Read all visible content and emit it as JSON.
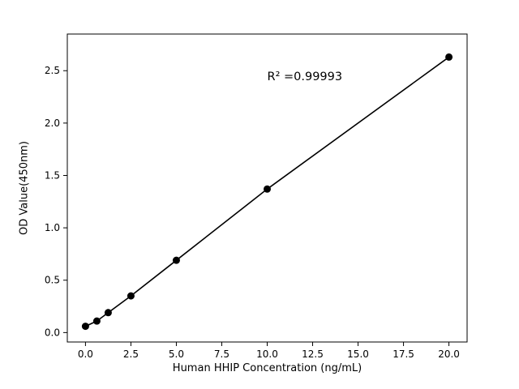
{
  "chart_data": {
    "type": "scatter",
    "title": "",
    "xlabel": "Human HHIP Concentration (ng/mL)",
    "ylabel": "OD Value(450nm)",
    "x": [
      0,
      0.625,
      1.25,
      2.5,
      5,
      10,
      20
    ],
    "y": [
      0.06,
      0.11,
      0.19,
      0.35,
      0.69,
      1.37,
      2.63
    ],
    "line": true,
    "line_color": "#000000",
    "marker_color": "#000000",
    "background_color": "#ffffff",
    "xlim": [
      -1,
      21
    ],
    "ylim": [
      -0.09,
      2.85
    ],
    "xticks": [
      {
        "value": 0,
        "label": "0.0"
      },
      {
        "value": 2.5,
        "label": "2.5"
      },
      {
        "value": 5,
        "label": "5.0"
      },
      {
        "value": 7.5,
        "label": "7.5"
      },
      {
        "value": 10,
        "label": "10.0"
      },
      {
        "value": 12.5,
        "label": "12.5"
      },
      {
        "value": 15,
        "label": "15.0"
      },
      {
        "value": 17.5,
        "label": "17.5"
      },
      {
        "value": 20,
        "label": "20.0"
      }
    ],
    "yticks": [
      {
        "value": 0.0,
        "label": "0.0"
      },
      {
        "value": 0.5,
        "label": "0.5"
      },
      {
        "value": 1.0,
        "label": "1.0"
      },
      {
        "value": 1.5,
        "label": "1.5"
      },
      {
        "value": 2.0,
        "label": "2.0"
      },
      {
        "value": 2.5,
        "label": "2.5"
      }
    ],
    "annotation": {
      "text": "R² =0.99993",
      "x": 10,
      "y": 2.38
    },
    "legend": null,
    "grid": false
  }
}
